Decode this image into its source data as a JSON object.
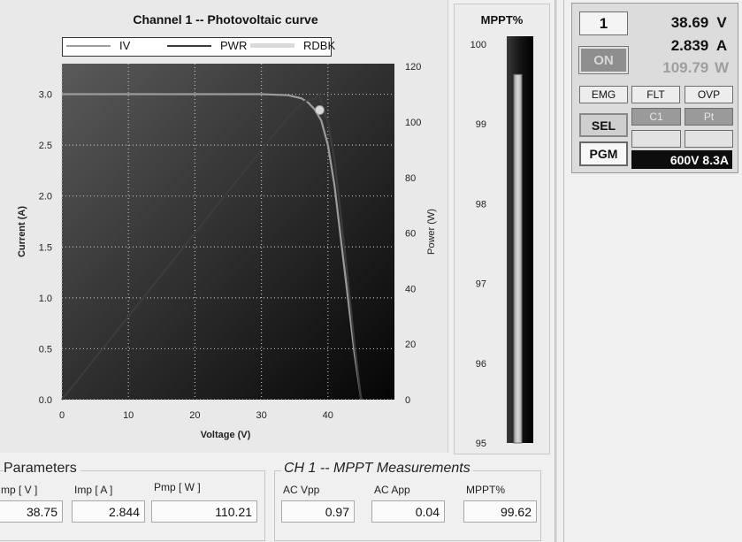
{
  "chart_data": {
    "type": "line",
    "title": "Channel 1 -- Photovoltaic curve",
    "xlabel": "Voltage (V)",
    "ylabel": "Current (A)",
    "y2label": "Power (W)",
    "xlim": [
      0,
      50
    ],
    "ylim": [
      0,
      3.3
    ],
    "y2lim": [
      0,
      121
    ],
    "x_ticks": [
      "0",
      "10",
      "20",
      "30",
      "40"
    ],
    "y_ticks": [
      "0.0",
      "0.5",
      "1.0",
      "1.5",
      "2.0",
      "2.5",
      "3.0"
    ],
    "y2_ticks": [
      "0",
      "20",
      "40",
      "60",
      "80",
      "100",
      "120"
    ],
    "grid": true,
    "legend_position": "top",
    "series": [
      {
        "name": "IV",
        "axis": "left",
        "color": "#9c9c9c",
        "x": [
          0,
          10,
          20,
          30,
          34,
          36,
          37,
          38,
          39,
          40,
          41,
          42,
          43,
          44,
          45
        ],
        "values": [
          3.0,
          3.0,
          3.0,
          3.0,
          2.99,
          2.96,
          2.92,
          2.85,
          2.74,
          2.5,
          2.1,
          1.55,
          1.0,
          0.45,
          0.0
        ]
      },
      {
        "name": "PWR",
        "axis": "right",
        "color": "#3c3c3c",
        "x": [
          0,
          10,
          20,
          30,
          34,
          36,
          37,
          38,
          38.75,
          39,
          40,
          41,
          42,
          43,
          44,
          45
        ],
        "values": [
          0,
          30,
          60,
          90,
          101.7,
          106.6,
          108.0,
          108.3,
          110.2,
          106.9,
          100,
          86.1,
          65.1,
          43,
          19.8,
          0
        ]
      },
      {
        "name": "RDBK",
        "axis": "left",
        "color": "#d9d9d9",
        "x": [
          38.75
        ],
        "values": [
          2.844
        ]
      }
    ]
  },
  "mppt_gauge": {
    "title": "MPPT%",
    "ticks": [
      "100",
      "99",
      "98",
      "97",
      "96",
      "95"
    ],
    "min": 95,
    "max": 100,
    "value": 99.62
  },
  "channel": {
    "number": "1",
    "voltage": "38.69",
    "voltage_unit": "V",
    "current": "2.839",
    "current_unit": "A",
    "power": "109.79",
    "power_unit": "W",
    "on_label": "ON",
    "emg_label": "EMG",
    "flt_label": "FLT",
    "ovp_label": "OVP",
    "sel_label": "SEL",
    "c1_label": "C1",
    "pt_label": "Pt",
    "pgm_label": "PGM",
    "rating": "600V 8.3A"
  },
  "parameters": {
    "title": "Parameters",
    "vmp_label": "mp [ V ]",
    "vmp_value": "38.75",
    "imp_label": "Imp [ A ]",
    "imp_value": "2.844",
    "pmp_label": "Pmp [ W ]",
    "pmp_value": "110.21"
  },
  "mppt_measurements": {
    "title": "CH 1 -- MPPT Measurements",
    "acvpp_label": "AC Vpp",
    "acvpp_value": "0.97",
    "acapp_label": "AC App",
    "acapp_value": "0.04",
    "mppt_label": "MPPT%",
    "mppt_value": "99.62"
  }
}
